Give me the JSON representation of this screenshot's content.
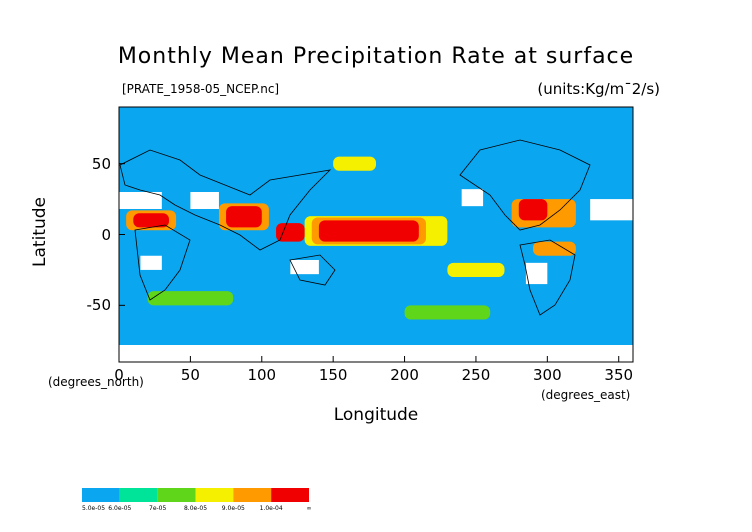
{
  "chart_data": {
    "type": "heatmap",
    "title": "Monthly Mean Precipitation Rate at surface",
    "subtitle": "[PRATE_1958-05_NCEP.nc]",
    "units": "(units:Kg/m¯2/s)",
    "xlabel": "Longitude",
    "ylabel": "Latitude",
    "xlabel_unit": "(degrees_east)",
    "ylabel_unit": "(degrees_north)",
    "xlim": [
      0,
      360
    ],
    "ylim": [
      -90,
      90
    ],
    "x_ticks": [
      0,
      50,
      100,
      150,
      200,
      250,
      300,
      350
    ],
    "y_ticks": [
      -50,
      0,
      50
    ],
    "colorbar": {
      "labels": [
        "5.0e-05",
        "6.0e-05",
        "7e-05",
        "8.0e-05",
        "9.0e-05",
        "1.0e-04",
        "∞"
      ],
      "colors": [
        "#0aa6f0",
        "#00e49a",
        "#5fd61a",
        "#f4f000",
        "#ff9a00",
        "#f00000"
      ],
      "missing_color": "#ffffff"
    },
    "regions": [
      {
        "level": 5,
        "lon": [
          140,
          210
        ],
        "lat": [
          -5,
          10
        ]
      },
      {
        "level": 4,
        "lon": [
          135,
          215
        ],
        "lat": [
          -7,
          12
        ]
      },
      {
        "level": 3,
        "lon": [
          130,
          230
        ],
        "lat": [
          -8,
          13
        ]
      },
      {
        "level": 5,
        "lon": [
          110,
          130
        ],
        "lat": [
          -5,
          8
        ]
      },
      {
        "level": 5,
        "lon": [
          280,
          300
        ],
        "lat": [
          10,
          25
        ]
      },
      {
        "level": 4,
        "lon": [
          275,
          320
        ],
        "lat": [
          5,
          25
        ]
      },
      {
        "level": 5,
        "lon": [
          10,
          35
        ],
        "lat": [
          5,
          15
        ]
      },
      {
        "level": 4,
        "lon": [
          5,
          40
        ],
        "lat": [
          3,
          17
        ]
      },
      {
        "level": 5,
        "lon": [
          75,
          100
        ],
        "lat": [
          5,
          20
        ]
      },
      {
        "level": 4,
        "lon": [
          70,
          105
        ],
        "lat": [
          3,
          22
        ]
      },
      {
        "level": 3,
        "lon": [
          230,
          270
        ],
        "lat": [
          -30,
          -20
        ]
      },
      {
        "level": 4,
        "lon": [
          290,
          320
        ],
        "lat": [
          -15,
          -5
        ]
      },
      {
        "level": 2,
        "lon": [
          20,
          80
        ],
        "lat": [
          -50,
          -40
        ]
      },
      {
        "level": 2,
        "lon": [
          200,
          260
        ],
        "lat": [
          -60,
          -50
        ]
      },
      {
        "level": 3,
        "lon": [
          150,
          180
        ],
        "lat": [
          45,
          55
        ]
      }
    ],
    "missing_regions": [
      {
        "lon": [
          0,
          30
        ],
        "lat": [
          18,
          30
        ]
      },
      {
        "lon": [
          50,
          70
        ],
        "lat": [
          18,
          30
        ]
      },
      {
        "lon": [
          240,
          255
        ],
        "lat": [
          20,
          32
        ]
      },
      {
        "lon": [
          330,
          360
        ],
        "lat": [
          10,
          25
        ]
      },
      {
        "lon": [
          15,
          30
        ],
        "lat": [
          -25,
          -15
        ]
      },
      {
        "lon": [
          120,
          140
        ],
        "lat": [
          -28,
          -18
        ]
      },
      {
        "lon": [
          285,
          300
        ],
        "lat": [
          -35,
          -20
        ]
      },
      {
        "lon": [
          0,
          360
        ],
        "lat": [
          -90,
          -78
        ]
      }
    ]
  }
}
